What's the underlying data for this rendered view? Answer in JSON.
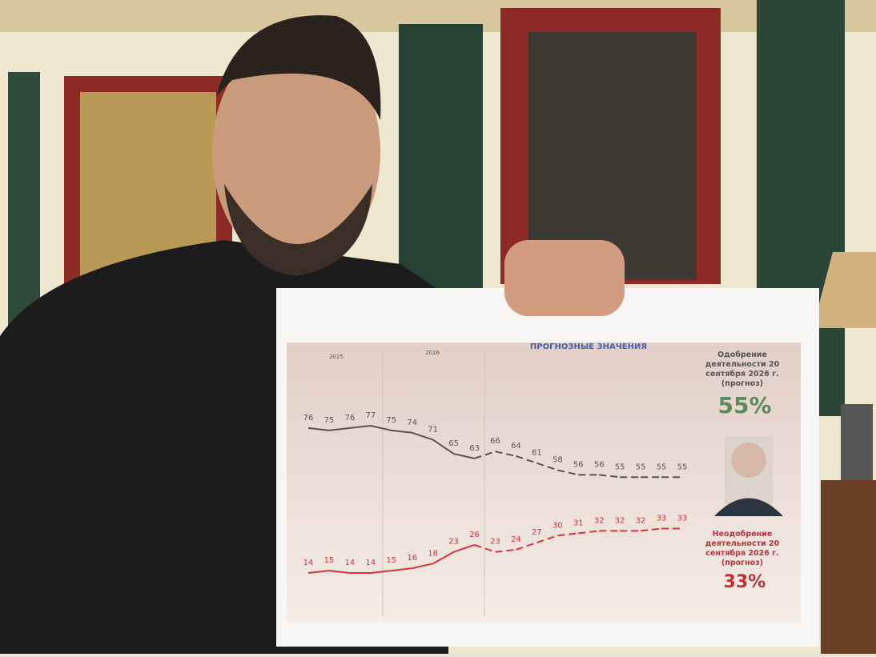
{
  "chart_data": {
    "type": "line",
    "header": "ПРОГНОЗНЫЕ ЗНАЧЕНИЯ",
    "periods": [
      "2025",
      "2026"
    ],
    "forecast_start_index": 8,
    "series": [
      {
        "name": "Одобрение деятельности 20 сентября 2026 г. (прогноз)",
        "color": "#555555",
        "forecast": "55%",
        "values": [
          76,
          75,
          76,
          77,
          75,
          74,
          71,
          65,
          63,
          66,
          64,
          61,
          58,
          56,
          56,
          55,
          55,
          55,
          55
        ]
      },
      {
        "name": "Неодобрение деятельности 20 сентября 2026 г. (прогноз)",
        "color": "#d2343c",
        "forecast": "33%",
        "values": [
          14,
          15,
          14,
          14,
          15,
          16,
          18,
          23,
          26,
          23,
          24,
          27,
          30,
          31,
          32,
          32,
          32,
          33,
          33
        ]
      }
    ]
  }
}
